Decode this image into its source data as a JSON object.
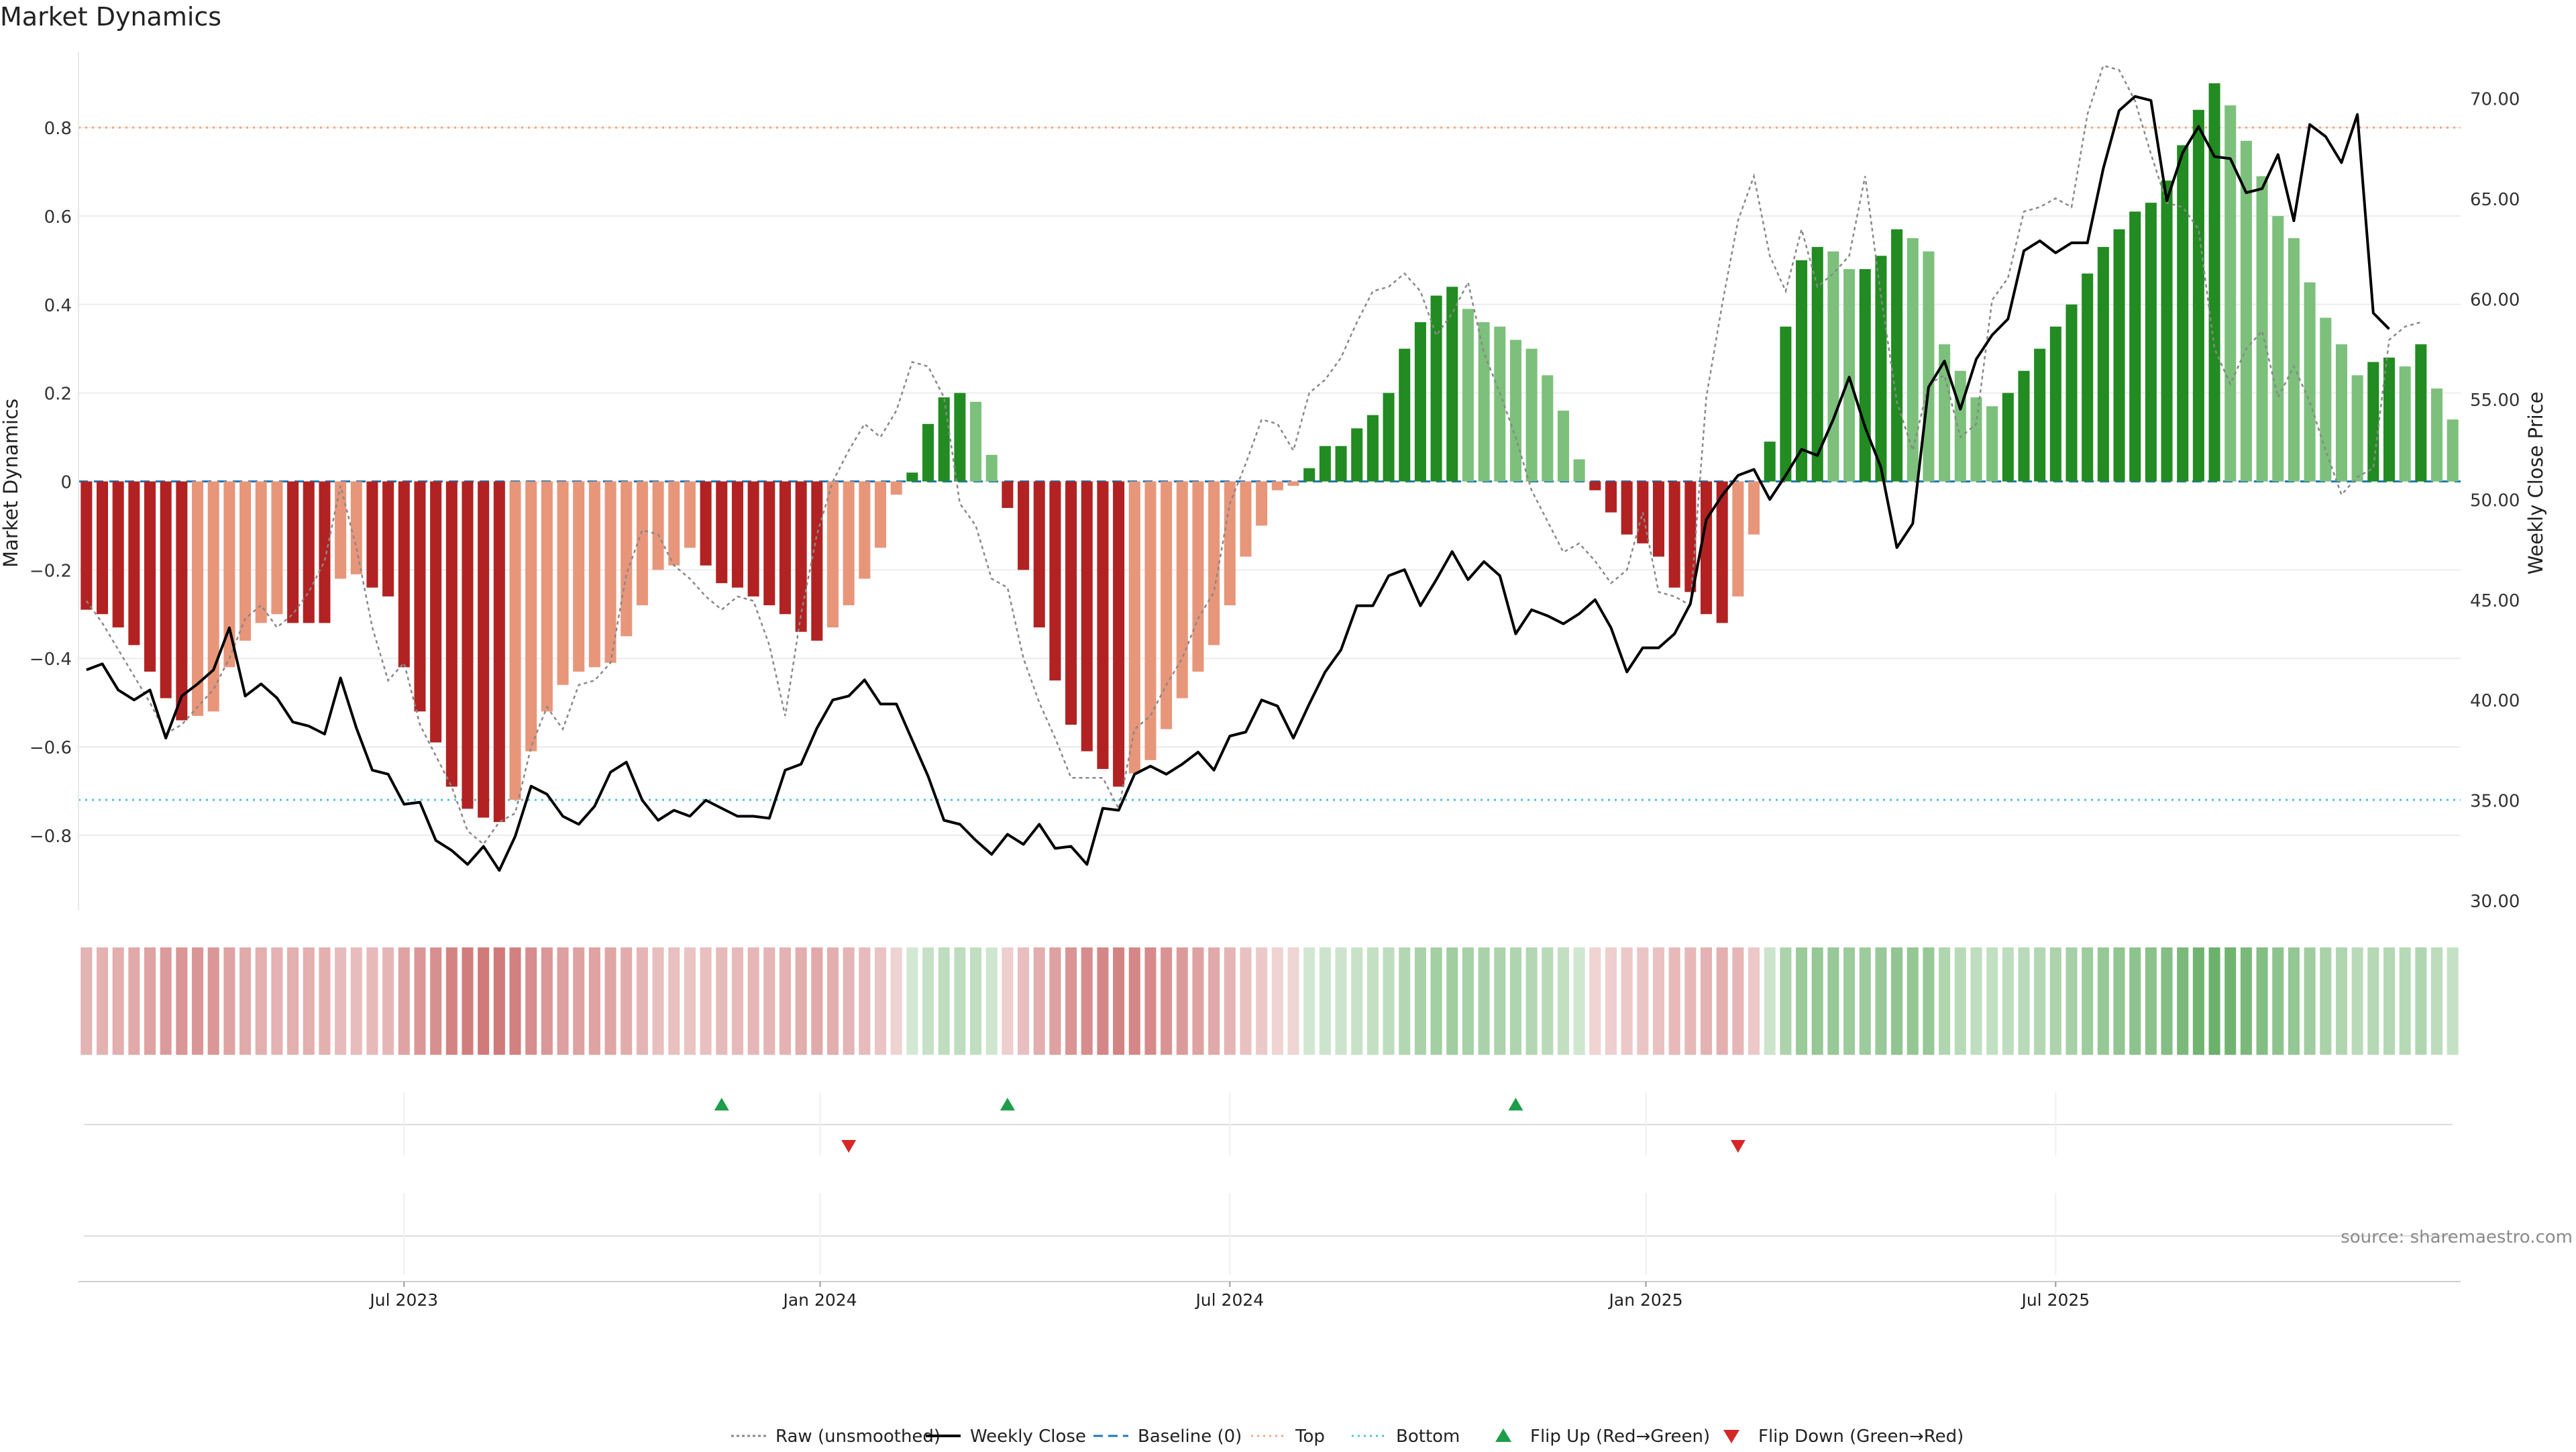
{
  "chart_data": {
    "type": "bar",
    "title": "Market Dynamics",
    "ylabel_left": "Market Dynamics",
    "ylabel_right": "Weekly Close Price",
    "source": "source: sharemaestro.com",
    "ylim_left": [
      -0.97,
      0.97
    ],
    "ylim_right": [
      29.5,
      72.3
    ],
    "yticks_left": [
      -0.8,
      -0.6,
      -0.4,
      -0.2,
      0,
      0.2,
      0.4,
      0.6,
      0.8
    ],
    "ytick_labels_left": [
      "−0.8",
      "−0.6",
      "−0.4",
      "−0.2",
      "0",
      "0.2",
      "0.4",
      "0.6",
      "0.8"
    ],
    "yticks_right": [
      30,
      35,
      40,
      45,
      50,
      55,
      60,
      65,
      70
    ],
    "ytick_labels_right": [
      "30.00",
      "35.00",
      "40.00",
      "45.00",
      "50.00",
      "55.00",
      "60.00",
      "65.00",
      "70.00"
    ],
    "xticks": [
      {
        "label": "Jul 2023",
        "week": 20
      },
      {
        "label": "Jan 2024",
        "week": 46.2
      },
      {
        "label": "Jul 2024",
        "week": 72
      },
      {
        "label": "Jan 2025",
        "week": 98.2
      },
      {
        "label": "Jul 2025",
        "week": 124
      }
    ],
    "top_threshold": 0.8,
    "bottom_threshold": -0.72,
    "grid": true,
    "legend_position": "bottom-center",
    "colors": {
      "strong_pos": "#228B22",
      "weak_pos": "#7CC07C",
      "strong_neg": "#B22222",
      "weak_neg": "#E8967A",
      "top_line": "#F4A582",
      "bottom_line": "#4FC3D9",
      "baseline": "#1F77B4",
      "close_line": "#000000",
      "raw_line": "#888888",
      "flip_up": "#1E9E4A",
      "flip_down": "#D62728"
    },
    "series": [
      {
        "name": "Market Dynamics",
        "values": [
          -0.29,
          -0.3,
          -0.33,
          -0.37,
          -0.43,
          -0.49,
          -0.54,
          -0.53,
          -0.52,
          -0.42,
          -0.36,
          -0.32,
          -0.3,
          -0.32,
          -0.32,
          -0.32,
          -0.22,
          -0.21,
          -0.24,
          -0.26,
          -0.42,
          -0.52,
          -0.59,
          -0.69,
          -0.74,
          -0.76,
          -0.77,
          -0.72,
          -0.61,
          -0.52,
          -0.46,
          -0.43,
          -0.42,
          -0.41,
          -0.35,
          -0.28,
          -0.2,
          -0.19,
          -0.15,
          -0.19,
          -0.23,
          -0.24,
          -0.26,
          -0.28,
          -0.3,
          -0.34,
          -0.36,
          -0.33,
          -0.28,
          -0.22,
          -0.15,
          -0.03,
          0.02,
          0.13,
          0.19,
          0.2,
          0.18,
          0.06,
          -0.06,
          -0.2,
          -0.33,
          -0.45,
          -0.55,
          -0.61,
          -0.65,
          -0.69,
          -0.66,
          -0.63,
          -0.56,
          -0.49,
          -0.43,
          -0.37,
          -0.28,
          -0.17,
          -0.1,
          -0.02,
          -0.01,
          0.03,
          0.08,
          0.08,
          0.12,
          0.15,
          0.2,
          0.3,
          0.36,
          0.42,
          0.44,
          0.39,
          0.36,
          0.35,
          0.32,
          0.3,
          0.24,
          0.16,
          0.05,
          -0.02,
          -0.07,
          -0.12,
          -0.14,
          -0.17,
          -0.24,
          -0.25,
          -0.3,
          -0.32,
          -0.26,
          -0.12,
          0.09,
          0.35,
          0.5,
          0.53,
          0.52,
          0.48,
          0.48,
          0.51,
          0.57,
          0.55,
          0.52,
          0.31,
          0.25,
          0.19,
          0.17,
          0.2,
          0.25,
          0.3,
          0.35,
          0.4,
          0.47,
          0.53,
          0.57,
          0.61,
          0.63,
          0.68,
          0.76,
          0.84,
          0.9,
          0.85,
          0.77,
          0.69,
          0.6,
          0.55,
          0.45,
          0.37,
          0.31,
          0.24,
          0.27,
          0.28,
          0.26,
          0.31,
          0.21,
          0.14
        ]
      },
      {
        "name": "Weekly Close",
        "values": [
          41.5,
          41.8,
          40.5,
          40.0,
          40.5,
          38.1,
          40.2,
          40.8,
          41.5,
          43.6,
          40.2,
          40.8,
          40.1,
          38.9,
          38.7,
          38.3,
          41.1,
          38.6,
          36.5,
          36.3,
          34.8,
          34.9,
          33.0,
          32.5,
          31.8,
          32.7,
          31.5,
          33.2,
          35.7,
          35.3,
          34.2,
          33.8,
          34.7,
          36.4,
          36.9,
          35.0,
          34.0,
          34.5,
          34.2,
          35.0,
          34.6,
          34.2,
          34.2,
          34.1,
          36.5,
          36.8,
          38.6,
          40.0,
          40.2,
          41.0,
          39.8,
          39.8,
          38.0,
          36.2,
          34.0,
          33.8,
          33.0,
          32.3,
          33.3,
          32.8,
          33.8,
          32.6,
          32.7,
          31.8,
          34.6,
          34.5,
          36.3,
          36.7,
          36.3,
          36.8,
          37.4,
          36.5,
          38.2,
          38.4,
          40.0,
          39.7,
          38.1,
          39.8,
          41.4,
          42.5,
          44.7,
          44.7,
          46.2,
          46.5,
          44.7,
          46.0,
          47.4,
          46.0,
          46.9,
          46.2,
          43.3,
          44.5,
          44.2,
          43.8,
          44.3,
          45.0,
          43.6,
          41.4,
          42.6,
          42.6,
          43.3,
          44.8,
          49.0,
          50.2,
          51.2,
          51.5,
          50.0,
          51.2,
          52.5,
          52.2,
          54.0,
          56.1,
          53.6,
          51.6,
          47.6,
          48.8,
          55.6,
          56.9,
          54.5,
          57.0,
          58.2,
          59.0,
          62.4,
          62.9,
          62.3,
          62.8,
          62.8,
          66.5,
          69.4,
          70.1,
          69.9,
          64.9,
          67.3,
          68.6,
          67.1,
          67.0,
          65.3,
          65.5,
          67.2,
          63.9,
          68.7,
          68.1,
          66.8,
          69.2,
          59.3,
          58.5
        ]
      },
      {
        "name": "Raw (unsmoothed)",
        "values": [
          -0.27,
          -0.32,
          -0.38,
          -0.44,
          -0.5,
          -0.57,
          -0.55,
          -0.51,
          -0.47,
          -0.4,
          -0.31,
          -0.28,
          -0.33,
          -0.3,
          -0.25,
          -0.18,
          -0.01,
          -0.15,
          -0.33,
          -0.45,
          -0.41,
          -0.55,
          -0.62,
          -0.69,
          -0.79,
          -0.82,
          -0.77,
          -0.75,
          -0.6,
          -0.51,
          -0.56,
          -0.46,
          -0.45,
          -0.41,
          -0.21,
          -0.11,
          -0.12,
          -0.19,
          -0.22,
          -0.26,
          -0.29,
          -0.26,
          -0.27,
          -0.37,
          -0.53,
          -0.3,
          -0.12,
          0.0,
          0.07,
          0.13,
          0.1,
          0.16,
          0.27,
          0.26,
          0.19,
          -0.05,
          -0.1,
          -0.22,
          -0.24,
          -0.4,
          -0.5,
          -0.58,
          -0.67,
          -0.67,
          -0.67,
          -0.74,
          -0.56,
          -0.53,
          -0.46,
          -0.4,
          -0.31,
          -0.25,
          -0.05,
          0.04,
          0.14,
          0.13,
          0.07,
          0.2,
          0.23,
          0.28,
          0.36,
          0.43,
          0.44,
          0.47,
          0.43,
          0.33,
          0.38,
          0.45,
          0.29,
          0.2,
          0.1,
          -0.02,
          -0.09,
          -0.16,
          -0.14,
          -0.18,
          -0.23,
          -0.2,
          -0.07,
          -0.25,
          -0.26,
          -0.28,
          0.19,
          0.4,
          0.59,
          0.69,
          0.51,
          0.43,
          0.57,
          0.44,
          0.47,
          0.51,
          0.69,
          0.42,
          0.18,
          0.07,
          0.22,
          0.24,
          0.1,
          0.13,
          0.41,
          0.46,
          0.61,
          0.62,
          0.64,
          0.62,
          0.83,
          0.94,
          0.93,
          0.86,
          0.74,
          0.63,
          0.62,
          0.57,
          0.3,
          0.22,
          0.3,
          0.34,
          0.19,
          0.26,
          0.18,
          0.07,
          -0.03,
          0.01,
          0.03,
          0.32,
          0.35,
          0.36
        ]
      },
      {
        "name": "Baseline (0)",
        "values": [
          0
        ]
      },
      {
        "name": "Top",
        "values": [
          0.8
        ]
      },
      {
        "name": "Bottom",
        "values": [
          -0.72
        ]
      }
    ],
    "flip_up_weeks": [
      40,
      58,
      90
    ],
    "flip_down_weeks": [
      48,
      104
    ],
    "legend": [
      {
        "label": "Raw (unsmoothed)",
        "style": "dotted-gray"
      },
      {
        "label": "Weekly Close",
        "style": "solid-black"
      },
      {
        "label": "Baseline (0)",
        "style": "dashed-blue"
      },
      {
        "label": "Top",
        "style": "dotted-orange"
      },
      {
        "label": "Bottom",
        "style": "dotted-cyan"
      },
      {
        "label": "Flip Up (Red→Green)",
        "style": "triangle-up-green"
      },
      {
        "label": "Flip Down (Green→Red)",
        "style": "triangle-down-red"
      }
    ]
  }
}
